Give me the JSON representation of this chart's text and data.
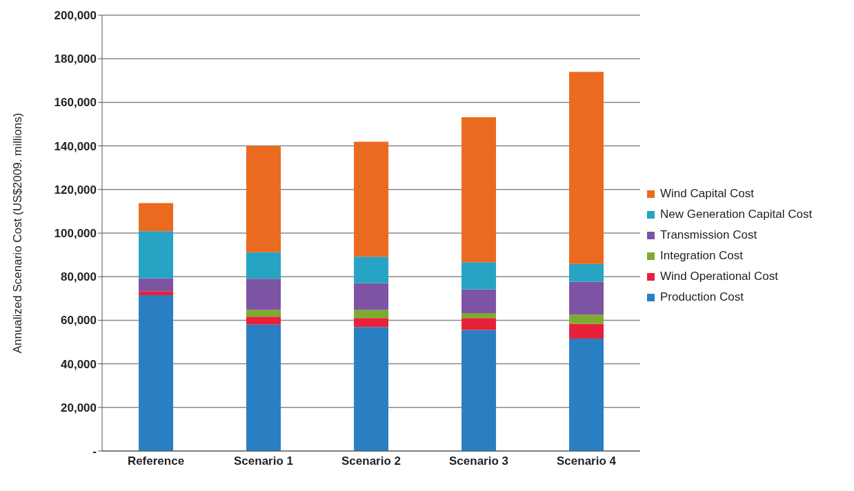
{
  "chart_data": {
    "type": "bar",
    "stacked": true,
    "ylabel": "Annualized Scenario Cost (US$2009. millions)",
    "categories": [
      "Reference",
      "Scenario 1",
      "Scenario 2",
      "Scenario 3",
      "Scenario 4"
    ],
    "series": [
      {
        "name": "Production Cost",
        "color": "#2a7fc2",
        "values": [
          71500,
          58000,
          56900,
          55500,
          51600
        ]
      },
      {
        "name": "Wind Operational Cost",
        "color": "#e8213a",
        "values": [
          1800,
          3600,
          4100,
          5500,
          6800
        ]
      },
      {
        "name": "Integration Cost",
        "color": "#7dab2f",
        "values": [
          0,
          3100,
          3700,
          2300,
          4200
        ]
      },
      {
        "name": "Transmission Cost",
        "color": "#7d54a3",
        "values": [
          6000,
          14300,
          12300,
          10800,
          15100
        ]
      },
      {
        "name": "New Generation Capital Cost",
        "color": "#27a3c4",
        "values": [
          21600,
          12200,
          12200,
          12500,
          8100
        ]
      },
      {
        "name": "Wind Capital Cost",
        "color": "#ea6a1f",
        "values": [
          12900,
          48800,
          52700,
          66600,
          88200
        ]
      }
    ],
    "ylim": [
      0,
      200000
    ],
    "yticks": [
      {
        "value": 0,
        "label": "-"
      },
      {
        "value": 20000,
        "label": "20,000"
      },
      {
        "value": 40000,
        "label": "40,000"
      },
      {
        "value": 60000,
        "label": "60,000"
      },
      {
        "value": 80000,
        "label": "80,000"
      },
      {
        "value": 100000,
        "label": "100,000"
      },
      {
        "value": 120000,
        "label": "120,000"
      },
      {
        "value": 140000,
        "label": "140,000"
      },
      {
        "value": 160000,
        "label": "160,000"
      },
      {
        "value": 180000,
        "label": "180,000"
      },
      {
        "value": 200000,
        "label": "200,000"
      }
    ],
    "grid": "y",
    "legend": "right"
  }
}
